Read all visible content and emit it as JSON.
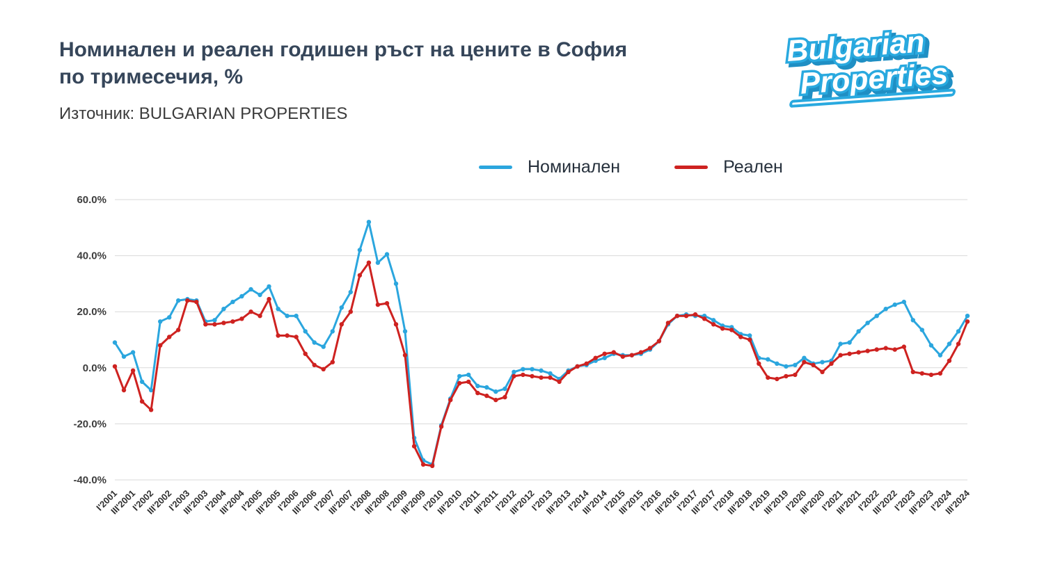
{
  "header": {
    "title_line1": "Номинален и реален годишен ръст на цените в София",
    "title_line2": "по тримесечия, %",
    "source": "Източник: BULGARIAN PROPERTIES"
  },
  "logo": {
    "line1": "Bulgarian",
    "line2": "Properties",
    "color": "#29A9DF"
  },
  "legend": [
    {
      "label": "Номинален",
      "color": "#2BA6DE"
    },
    {
      "label": "Реален",
      "color": "#CE2220"
    }
  ],
  "chart_data": {
    "type": "line",
    "title": "Номинален и реален годишен ръст на цените в София по тримесечия, %",
    "xlabel": "",
    "ylabel": "",
    "ylim": [
      -40,
      60
    ],
    "grid": true,
    "legend_position": "top",
    "y_ticks": [
      60,
      40,
      20,
      0,
      -20,
      -40
    ],
    "y_tick_labels": [
      "60.0%",
      "40.0%",
      "20.0%",
      "0.0%",
      "-20.0%",
      "-40.0%"
    ],
    "x_tick_every": 2,
    "x_tick_labels": [
      "I'2001",
      "III'2001",
      "I'2002",
      "III'2002",
      "I'2003",
      "III'2003",
      "I'2004",
      "III'2004",
      "I'2005",
      "III'2005",
      "I'2006",
      "III'2006",
      "I'2007",
      "III'2007",
      "I'2008",
      "III'2008",
      "I'2009",
      "III'2009",
      "I'2010",
      "III'2010",
      "I'2011",
      "III'2011",
      "I'2012",
      "III'2012",
      "I'2013",
      "III'2013",
      "I'2014",
      "III'2014",
      "I'2015",
      "III'2015",
      "I'2016",
      "III'2016",
      "I'2017",
      "III'2017",
      "I'2018",
      "III'2018",
      "I'2019",
      "III'2019",
      "I'2020",
      "III'2020",
      "I'2021",
      "III'2021",
      "I'2022",
      "III'2022",
      "I'2023",
      "III'2023",
      "I'2024",
      "III'2024"
    ],
    "series": [
      {
        "name": "Номинален",
        "key": "nominal",
        "color": "#2BA6DE",
        "values": [
          9,
          4,
          5.5,
          -5,
          -8,
          16.5,
          18,
          24,
          24.5,
          24,
          16.5,
          17,
          21,
          23.5,
          25.5,
          28,
          26,
          29,
          21,
          18.5,
          18.5,
          13,
          9,
          7.5,
          13,
          21.5,
          27,
          42,
          52,
          37.5,
          40.5,
          30,
          13,
          -25,
          -33,
          -34.5,
          -20.5,
          -11,
          -3,
          -2.5,
          -6.5,
          -7,
          -8.5,
          -7.5,
          -1.5,
          -0.5,
          -0.5,
          -1,
          -2,
          -4,
          -1,
          0.5,
          1,
          2.5,
          3.5,
          5,
          4.5,
          4.5,
          5,
          6.5,
          9.5,
          15.5,
          18.5,
          19,
          18.5,
          18.5,
          17,
          15,
          14.5,
          12,
          11.5,
          3.5,
          3,
          1.5,
          0.5,
          1,
          3.5,
          1.5,
          2,
          2.5,
          8.5,
          9,
          13,
          16,
          18.5,
          21,
          22.5,
          23.5,
          17,
          13.5,
          8,
          4.5,
          8.5,
          13,
          18.5
        ]
      },
      {
        "name": "Реален",
        "key": "real",
        "color": "#CE2220",
        "values": [
          0.5,
          -8,
          -1,
          -12,
          -15,
          8,
          11,
          13.5,
          24,
          23.5,
          15.5,
          15.5,
          16,
          16.5,
          17.5,
          20,
          18.5,
          24.5,
          11.5,
          11.5,
          11,
          5,
          1,
          -0.5,
          2,
          15.5,
          20,
          33,
          37.5,
          22.5,
          23,
          15.5,
          4.5,
          -28,
          -34.5,
          -35,
          -21,
          -11.5,
          -5.5,
          -5,
          -9,
          -10,
          -11.5,
          -10.5,
          -3,
          -2.5,
          -3,
          -3.5,
          -3.5,
          -5,
          -1.5,
          0.5,
          1.5,
          3.5,
          5,
          5.5,
          4,
          4.5,
          5.5,
          7,
          9.5,
          16,
          18.5,
          18.5,
          19,
          17.5,
          15.5,
          14,
          13.5,
          11,
          10,
          1.5,
          -3.5,
          -4,
          -3,
          -2.5,
          2,
          1,
          -1.5,
          1.5,
          4.5,
          5,
          5.5,
          6,
          6.5,
          7,
          6.5,
          7.5,
          -1.5,
          -2,
          -2.5,
          -2,
          2.5,
          8.5,
          16.5
        ]
      }
    ]
  }
}
